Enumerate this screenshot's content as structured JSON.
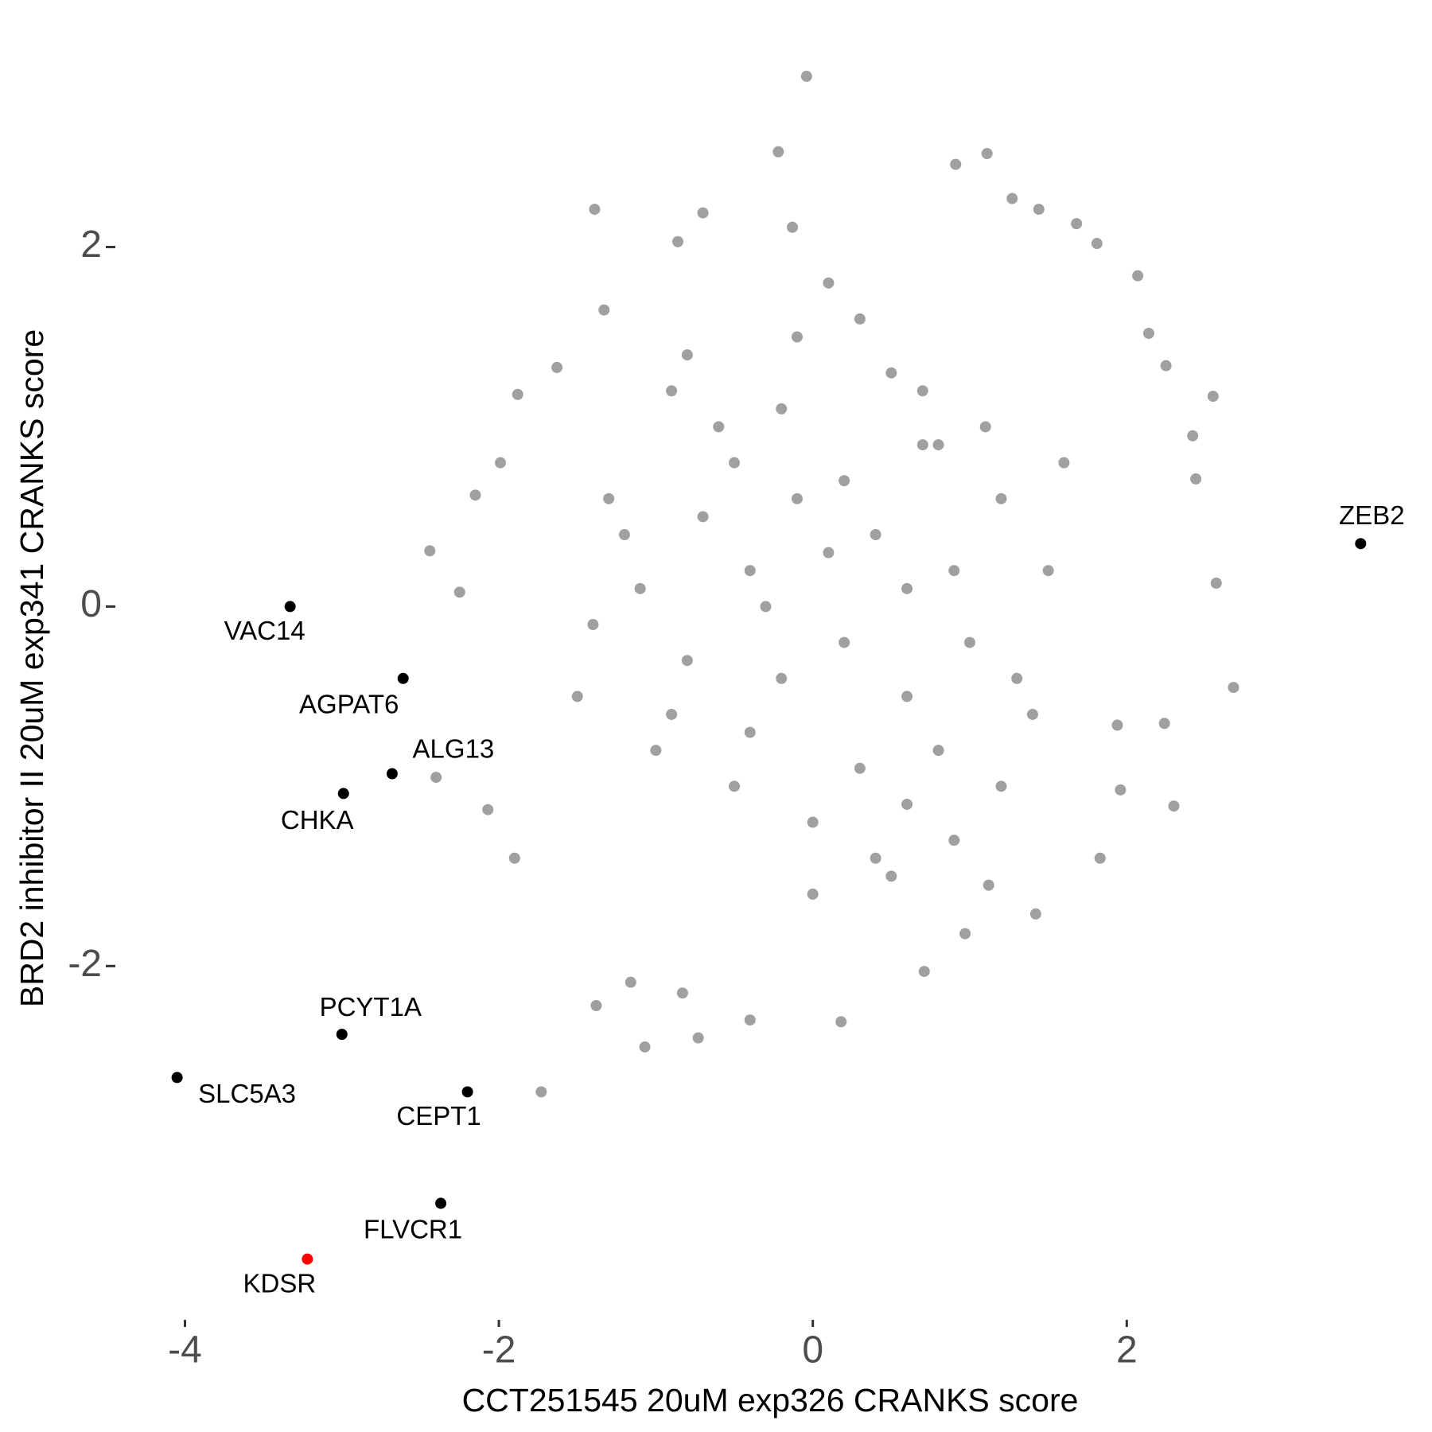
{
  "chart_data": {
    "type": "scatter",
    "x_label": "CCT251545 20uM exp326 CRANKS score",
    "y_label": "BRD2 inhibitor II 20uM exp341 CRANKS score",
    "xlim": [
      -4.2,
      3.6
    ],
    "ylim": [
      -3.8,
      3.1
    ],
    "xticks": [
      -4,
      -2,
      0,
      2
    ],
    "yticks": [
      -2,
      0,
      2
    ],
    "grid": false,
    "series": [
      {
        "color": "#a0a0a0",
        "x": [
          -0.04,
          -0.22,
          1.11,
          0.91,
          -1.39,
          -0.7,
          1.44,
          1.27,
          -0.13,
          1.68,
          -0.86,
          1.81,
          2.07,
          -1.33,
          2.14,
          -1.63,
          2.25,
          2.55,
          -1.88,
          2.42,
          -1.99,
          2.44,
          -2.15,
          -2.44,
          2.57,
          2.68,
          -2.25,
          -2.4,
          2.3,
          -2.07,
          -1.9,
          2.24,
          1.42,
          1.12,
          0.97,
          0.71,
          0.18,
          -0.4,
          -0.73,
          -1.07,
          -1.38,
          -1.73,
          -0.83,
          -1.16,
          1.83,
          1.96,
          1.94,
          0.1,
          -0.5,
          0.6,
          -0.2,
          0.9,
          -0.8,
          0.3,
          1.2,
          -1.1,
          0.0,
          0.5,
          -0.4,
          0.8,
          -0.7,
          1.0,
          -0.1,
          0.4,
          -0.9,
          0.7,
          -0.3,
          1.3,
          -1.2,
          0.2,
          0.6,
          -0.6,
          1.1,
          -1.0,
          0.3,
          -0.2,
          0.9,
          1.5,
          -1.4,
          0.0,
          0.7,
          -0.5,
          1.4,
          -1.3,
          0.4,
          0.1,
          -0.8,
          1.6,
          -1.5,
          0.5,
          -0.1,
          0.8,
          -0.4,
          1.2,
          -0.9,
          0.2,
          0.6
        ],
        "y": [
          2.95,
          2.53,
          2.52,
          2.46,
          2.21,
          2.19,
          2.21,
          2.27,
          2.11,
          2.13,
          2.03,
          2.02,
          1.84,
          1.65,
          1.52,
          1.33,
          1.34,
          1.17,
          1.18,
          0.95,
          0.8,
          0.71,
          0.62,
          0.31,
          0.13,
          -0.45,
          0.08,
          -0.95,
          -1.11,
          -1.13,
          -1.4,
          -0.65,
          -1.71,
          -1.55,
          -1.82,
          -2.03,
          -2.31,
          -2.3,
          -2.4,
          -2.45,
          -2.22,
          -2.7,
          -2.15,
          -2.09,
          -1.4,
          -1.02,
          -0.66,
          0.3,
          0.8,
          -0.5,
          1.1,
          0.2,
          -0.3,
          -0.9,
          0.6,
          0.1,
          -1.2,
          1.3,
          -0.7,
          0.9,
          0.5,
          -0.2,
          1.5,
          -1.4,
          -0.6,
          1.2,
          0.0,
          -0.4,
          0.4,
          0.7,
          -1.1,
          1.0,
          1.0,
          -0.8,
          1.6,
          -0.4,
          -1.3,
          0.2,
          -0.1,
          -1.6,
          0.9,
          -1.0,
          -0.6,
          0.6,
          0.4,
          1.8,
          1.4,
          0.8,
          -0.5,
          -1.5,
          0.6,
          -0.8,
          0.2,
          -1.0,
          1.2,
          -0.2,
          0.1
        ]
      },
      {
        "color": "#000000",
        "x": [
          -3.33,
          -2.61,
          -2.68,
          -2.99,
          -3.0,
          -4.05,
          -2.2,
          -2.37,
          3.49
        ],
        "y": [
          0.0,
          -0.4,
          -0.93,
          -1.04,
          -2.38,
          -2.62,
          -2.7,
          -3.32,
          0.35
        ],
        "labels": [
          "VAC14",
          "AGPAT6",
          "ALG13",
          "CHKA",
          "PCYT1A",
          "SLC5A3",
          "CEPT1",
          "FLVCR1",
          "ZEB2"
        ]
      },
      {
        "color": "#ff0000",
        "x": [
          -3.22
        ],
        "y": [
          -3.63
        ],
        "labels": [
          "KDSR"
        ]
      }
    ]
  }
}
